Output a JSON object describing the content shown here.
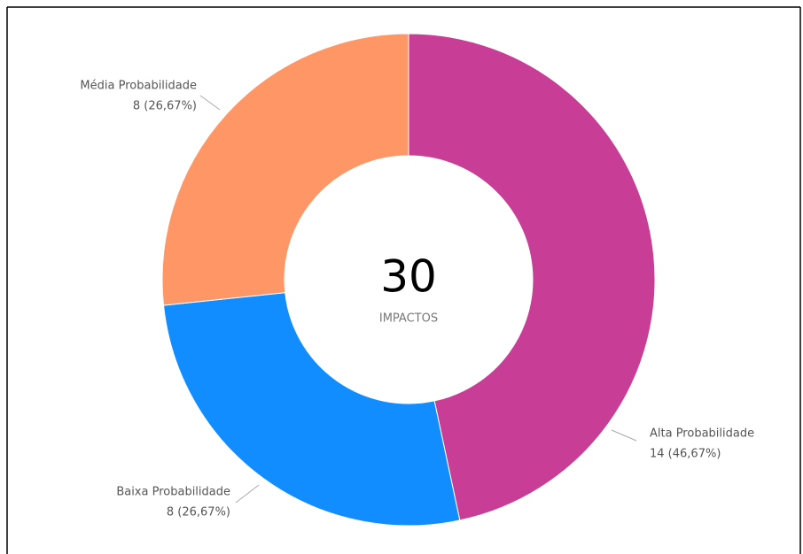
{
  "chart_data": {
    "type": "donut",
    "categories": [
      "Alta Probabilidade",
      "Baixa Probabilidade",
      "Média Probabilidade"
    ],
    "values": [
      14,
      8,
      8
    ],
    "value_labels": [
      "14 (46,67%)",
      "8 (26,67%)",
      "8 (26,67%)"
    ],
    "colors": [
      "#C83D95",
      "#118DFF",
      "#FE9666"
    ],
    "center_value": 30,
    "center_label": "IMPACTOS"
  }
}
